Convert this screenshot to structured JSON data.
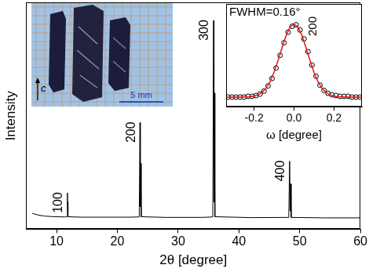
{
  "chart_data": [
    {
      "type": "line",
      "x_label": "2θ [degree]",
      "y_label": "Intensity",
      "color": "#000000",
      "x": [
        6,
        7,
        8,
        9,
        10,
        11.5,
        11.7,
        11.78,
        11.82,
        11.85,
        11.9,
        14,
        18,
        22,
        23.6,
        23.72,
        23.78,
        23.84,
        23.92,
        28,
        34,
        35.7,
        35.83,
        35.9,
        35.96,
        36.05,
        42,
        48.2,
        48.35,
        48.42,
        48.5,
        48.6,
        54,
        60
      ],
      "values": [
        7,
        6.2,
        5.8,
        5.6,
        5.5,
        5.4,
        5.6,
        16,
        9,
        12,
        5.5,
        5.3,
        5.3,
        5.3,
        5.4,
        47,
        10,
        29,
        5.5,
        5.2,
        5.2,
        5.4,
        92,
        12,
        60,
        5.5,
        5.1,
        5.2,
        30,
        8,
        20,
        5.2,
        5.0,
        5.0
      ],
      "xlim": [
        5,
        60
      ],
      "xticks": [
        10,
        20,
        30,
        40,
        50,
        60
      ],
      "ylim": [
        0,
        100
      ],
      "tick_labels": "x",
      "grid": false,
      "annotations": [
        {
          "text": "100",
          "x": 11.78
        },
        {
          "text": "200",
          "x": 23.72
        },
        {
          "text": "300",
          "x": 35.83
        },
        {
          "text": "400",
          "x": 48.35
        }
      ]
    },
    {
      "type": "scatter",
      "title": "FWHM=0.16°",
      "x_label": "ω [degree]",
      "xlim": [
        -0.34,
        0.34
      ],
      "xticks": [
        -0.2,
        {
          "value": 0,
          "label": "0.0"
        },
        0.2
      ],
      "ylim": [
        -0.11,
        1.27
      ],
      "tick_labels": "x",
      "grid": false,
      "annotations": [
        {
          "text": "200"
        }
      ],
      "series": [
        {
          "type": "scatter",
          "marker": "circle",
          "color": "#000000",
          "x": [
            -0.33,
            -0.31,
            -0.29,
            -0.27,
            -0.25,
            -0.23,
            -0.21,
            -0.19,
            -0.17,
            -0.15,
            -0.13,
            -0.11,
            -0.09,
            -0.07,
            -0.05,
            -0.03,
            -0.01,
            0.01,
            0.03,
            0.05,
            0.07,
            0.09,
            0.11,
            0.13,
            0.15,
            0.17,
            0.19,
            0.21,
            0.23,
            0.25,
            0.27,
            0.29,
            0.31,
            0.33
          ],
          "values": [
            0.02,
            0.02,
            0.02,
            0.02,
            0.02,
            0.03,
            0.03,
            0.04,
            0.06,
            0.1,
            0.17,
            0.27,
            0.41,
            0.58,
            0.75,
            0.89,
            0.97,
            0.99,
            0.92,
            0.8,
            0.63,
            0.45,
            0.3,
            0.18,
            0.11,
            0.07,
            0.05,
            0.04,
            0.03,
            0.03,
            0.03,
            0.02,
            0.02,
            0.02
          ]
        },
        {
          "type": "line",
          "line_style": "solid",
          "color": "#e02020",
          "x": [
            -0.34,
            -0.3,
            -0.26,
            -0.22,
            -0.2,
            -0.18,
            -0.16,
            -0.14,
            -0.12,
            -0.1,
            -0.08,
            -0.06,
            -0.04,
            -0.02,
            0,
            0.02,
            0.04,
            0.06,
            0.08,
            0.1,
            0.12,
            0.14,
            0.16,
            0.18,
            0.2,
            0.22,
            0.26,
            0.3,
            0.34
          ],
          "values": [
            0.02,
            0.02,
            0.02,
            0.025,
            0.033,
            0.049,
            0.082,
            0.138,
            0.227,
            0.352,
            0.511,
            0.684,
            0.844,
            0.959,
            1.0,
            0.959,
            0.844,
            0.684,
            0.511,
            0.352,
            0.227,
            0.138,
            0.082,
            0.049,
            0.033,
            0.025,
            0.02,
            0.02,
            0.02
          ]
        }
      ]
    }
  ],
  "photo": {
    "axis_label": "c",
    "scale_bar": "5 mm"
  }
}
